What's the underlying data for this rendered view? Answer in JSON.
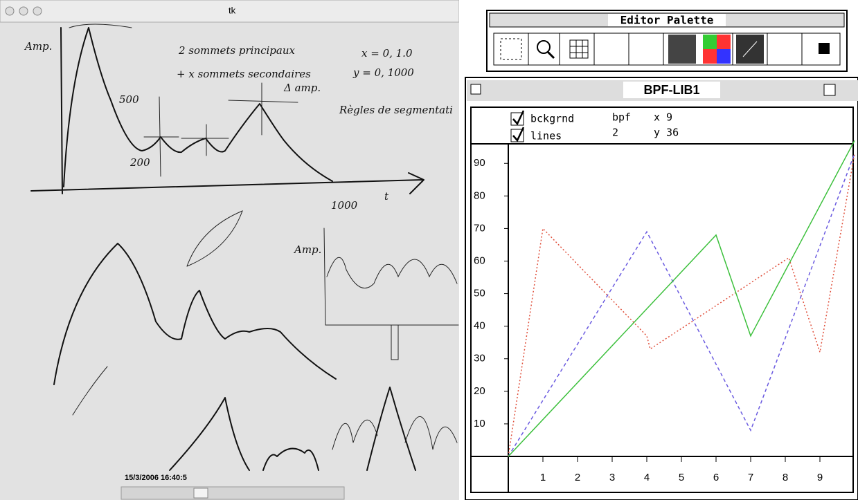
{
  "tk_window": {
    "title": "tk",
    "timestamp": "15/3/2006 16:40:5",
    "notes": [
      "2 sommets principaux",
      "+ x sommets secondaires",
      "x = 0, 1.0",
      "y = 0, 1000",
      "Δ amp.",
      "Règles de segmentati",
      "Amp.",
      "500",
      "200",
      "1000",
      "t",
      "Amp."
    ]
  },
  "palette": {
    "title": "Editor Palette"
  },
  "bpf_window": {
    "title": "BPF-LIB1",
    "checkboxes": [
      "bckgrnd",
      "lines"
    ],
    "info": [
      "bpf",
      "2",
      "x 9",
      "y 36"
    ],
    "plot": {
      "xlim": [
        0,
        10
      ],
      "ylim": [
        0,
        96
      ],
      "xticks": [
        1,
        2,
        3,
        4,
        5,
        6,
        7,
        8,
        9
      ],
      "yticks": [
        10,
        20,
        30,
        40,
        50,
        60,
        70,
        80,
        90
      ],
      "series": [
        {
          "color": "#e0503c",
          "x": [
            0,
            1,
            4,
            4.1,
            8.1,
            9,
            10
          ],
          "values": [
            0,
            70,
            37,
            33,
            61,
            32,
            93
          ]
        },
        {
          "color": "#6a5ae0",
          "x": [
            0,
            4,
            7,
            10
          ],
          "values": [
            0,
            69,
            8,
            93
          ]
        },
        {
          "color": "#3cc03c",
          "x": [
            0,
            6,
            7,
            10
          ],
          "values": [
            0,
            68,
            37,
            97
          ]
        }
      ]
    }
  }
}
